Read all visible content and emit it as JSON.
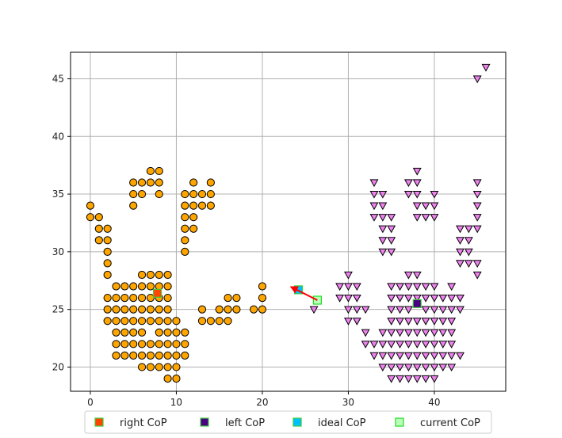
{
  "chart_data": {
    "type": "scatter",
    "title": "",
    "xlabel": "",
    "ylabel": "",
    "xlim": [
      -2.3,
      48.3
    ],
    "ylim": [
      17.9,
      47.3
    ],
    "x_ticks": [
      0,
      10,
      20,
      30,
      40
    ],
    "y_ticks": [
      20,
      25,
      30,
      35,
      40,
      45
    ],
    "grid": true,
    "legend_position": "bottom-outside",
    "colors": {
      "right_points": "#ffa500",
      "left_points": "#ee82ee",
      "right_cop": "#ff4500",
      "left_cop": "#4b0082",
      "ideal_cop": "#00bfff",
      "current_cop": "#7fff7f",
      "arrow": "#ff0000",
      "grid": "#b0b0b0"
    },
    "series": [
      {
        "marker": "circle",
        "points": [
          [
            0,
            34
          ],
          [
            0,
            33
          ],
          [
            1,
            33
          ],
          [
            1,
            32
          ],
          [
            1,
            31
          ],
          [
            2,
            32
          ],
          [
            2,
            31
          ],
          [
            2,
            30
          ],
          [
            2,
            29
          ],
          [
            2,
            28
          ],
          [
            2,
            26
          ],
          [
            2,
            25
          ],
          [
            2,
            24
          ],
          [
            3,
            27
          ],
          [
            3,
            26
          ],
          [
            3,
            25
          ],
          [
            3,
            24
          ],
          [
            3,
            23
          ],
          [
            3,
            22
          ],
          [
            3,
            21
          ],
          [
            4,
            27
          ],
          [
            4,
            26
          ],
          [
            4,
            25
          ],
          [
            4,
            24
          ],
          [
            4,
            23
          ],
          [
            4,
            22
          ],
          [
            4,
            21
          ],
          [
            5,
            34
          ],
          [
            5,
            35
          ],
          [
            5,
            36
          ],
          [
            5,
            27
          ],
          [
            5,
            26
          ],
          [
            5,
            25
          ],
          [
            5,
            24
          ],
          [
            5,
            23
          ],
          [
            5,
            22
          ],
          [
            5,
            21
          ],
          [
            6,
            36
          ],
          [
            6,
            35
          ],
          [
            6,
            28
          ],
          [
            6,
            27
          ],
          [
            6,
            26
          ],
          [
            6,
            25
          ],
          [
            6,
            24
          ],
          [
            6,
            23
          ],
          [
            6,
            22
          ],
          [
            6,
            21
          ],
          [
            6,
            20
          ],
          [
            7,
            37
          ],
          [
            7,
            36
          ],
          [
            7,
            28
          ],
          [
            7,
            27
          ],
          [
            7,
            26
          ],
          [
            7,
            25
          ],
          [
            7,
            24
          ],
          [
            7,
            22
          ],
          [
            7,
            21
          ],
          [
            7,
            20
          ],
          [
            8,
            37
          ],
          [
            8,
            36
          ],
          [
            8,
            35
          ],
          [
            8,
            28
          ],
          [
            8,
            27
          ],
          [
            8,
            26
          ],
          [
            8,
            25
          ],
          [
            8,
            24
          ],
          [
            8,
            23
          ],
          [
            8,
            22
          ],
          [
            8,
            21
          ],
          [
            8,
            20
          ],
          [
            9,
            28
          ],
          [
            9,
            27
          ],
          [
            9,
            26
          ],
          [
            9,
            25
          ],
          [
            9,
            24
          ],
          [
            9,
            23
          ],
          [
            9,
            22
          ],
          [
            9,
            21
          ],
          [
            9,
            20
          ],
          [
            9,
            19
          ],
          [
            10,
            24
          ],
          [
            10,
            23
          ],
          [
            10,
            22
          ],
          [
            10,
            21
          ],
          [
            10,
            20
          ],
          [
            10,
            19
          ],
          [
            11,
            35
          ],
          [
            11,
            34
          ],
          [
            11,
            33
          ],
          [
            11,
            32
          ],
          [
            11,
            31
          ],
          [
            11,
            30
          ],
          [
            11,
            23
          ],
          [
            11,
            22
          ],
          [
            11,
            21
          ],
          [
            12,
            36
          ],
          [
            12,
            35
          ],
          [
            12,
            34
          ],
          [
            12,
            33
          ],
          [
            12,
            32
          ],
          [
            13,
            35
          ],
          [
            13,
            34
          ],
          [
            13,
            25
          ],
          [
            13,
            24
          ],
          [
            14,
            36
          ],
          [
            14,
            35
          ],
          [
            14,
            34
          ],
          [
            14,
            24
          ],
          [
            15,
            25
          ],
          [
            15,
            24
          ],
          [
            16,
            26
          ],
          [
            16,
            25
          ],
          [
            16,
            24
          ],
          [
            17,
            26
          ],
          [
            17,
            25
          ],
          [
            19,
            25
          ],
          [
            20,
            27
          ],
          [
            20,
            26
          ],
          [
            20,
            25
          ]
        ]
      },
      {
        "marker": "triangle-down",
        "points": [
          [
            26,
            25
          ],
          [
            29,
            27
          ],
          [
            29,
            26
          ],
          [
            30,
            28
          ],
          [
            30,
            27
          ],
          [
            30,
            26
          ],
          [
            30,
            25
          ],
          [
            30,
            24
          ],
          [
            31,
            27
          ],
          [
            31,
            26
          ],
          [
            31,
            25
          ],
          [
            31,
            24
          ],
          [
            32,
            25
          ],
          [
            32,
            23
          ],
          [
            32,
            22
          ],
          [
            33,
            36
          ],
          [
            33,
            35
          ],
          [
            33,
            34
          ],
          [
            33,
            33
          ],
          [
            33,
            22
          ],
          [
            33,
            21
          ],
          [
            34,
            35
          ],
          [
            34,
            34
          ],
          [
            34,
            33
          ],
          [
            34,
            32
          ],
          [
            34,
            31
          ],
          [
            34,
            30
          ],
          [
            34,
            23
          ],
          [
            34,
            22
          ],
          [
            34,
            21
          ],
          [
            34,
            20
          ],
          [
            35,
            33
          ],
          [
            35,
            32
          ],
          [
            35,
            31
          ],
          [
            35,
            30
          ],
          [
            35,
            27
          ],
          [
            35,
            26
          ],
          [
            35,
            25
          ],
          [
            35,
            24
          ],
          [
            35,
            23
          ],
          [
            35,
            22
          ],
          [
            35,
            21
          ],
          [
            35,
            20
          ],
          [
            35,
            19
          ],
          [
            36,
            27
          ],
          [
            36,
            26
          ],
          [
            36,
            25
          ],
          [
            36,
            24
          ],
          [
            36,
            23
          ],
          [
            36,
            22
          ],
          [
            36,
            21
          ],
          [
            36,
            20
          ],
          [
            36,
            19
          ],
          [
            37,
            36
          ],
          [
            37,
            35
          ],
          [
            37,
            28
          ],
          [
            37,
            27
          ],
          [
            37,
            26
          ],
          [
            37,
            25
          ],
          [
            37,
            24
          ],
          [
            37,
            23
          ],
          [
            37,
            22
          ],
          [
            37,
            21
          ],
          [
            37,
            20
          ],
          [
            37,
            19
          ],
          [
            38,
            37
          ],
          [
            38,
            36
          ],
          [
            38,
            35
          ],
          [
            38,
            34
          ],
          [
            38,
            33
          ],
          [
            38,
            28
          ],
          [
            38,
            27
          ],
          [
            38,
            26
          ],
          [
            38,
            24
          ],
          [
            38,
            23
          ],
          [
            38,
            22
          ],
          [
            38,
            21
          ],
          [
            38,
            20
          ],
          [
            38,
            19
          ],
          [
            39,
            34
          ],
          [
            39,
            33
          ],
          [
            39,
            27
          ],
          [
            39,
            26
          ],
          [
            39,
            25
          ],
          [
            39,
            24
          ],
          [
            39,
            23
          ],
          [
            39,
            22
          ],
          [
            39,
            21
          ],
          [
            39,
            20
          ],
          [
            39,
            19
          ],
          [
            40,
            35
          ],
          [
            40,
            34
          ],
          [
            40,
            33
          ],
          [
            40,
            27
          ],
          [
            40,
            26
          ],
          [
            40,
            25
          ],
          [
            40,
            24
          ],
          [
            40,
            23
          ],
          [
            40,
            22
          ],
          [
            40,
            21
          ],
          [
            40,
            20
          ],
          [
            40,
            19
          ],
          [
            41,
            26
          ],
          [
            41,
            25
          ],
          [
            41,
            24
          ],
          [
            41,
            23
          ],
          [
            41,
            22
          ],
          [
            41,
            21
          ],
          [
            41,
            20
          ],
          [
            42,
            27
          ],
          [
            42,
            26
          ],
          [
            42,
            25
          ],
          [
            42,
            24
          ],
          [
            42,
            23
          ],
          [
            42,
            22
          ],
          [
            42,
            21
          ],
          [
            42,
            20
          ],
          [
            43,
            32
          ],
          [
            43,
            31
          ],
          [
            43,
            30
          ],
          [
            43,
            29
          ],
          [
            43,
            26
          ],
          [
            43,
            25
          ],
          [
            43,
            21
          ],
          [
            44,
            32
          ],
          [
            44,
            31
          ],
          [
            44,
            30
          ],
          [
            44,
            29
          ],
          [
            45,
            36
          ],
          [
            45,
            35
          ],
          [
            45,
            34
          ],
          [
            45,
            33
          ],
          [
            45,
            32
          ],
          [
            45,
            29
          ],
          [
            45,
            28
          ],
          [
            45,
            45
          ],
          [
            46,
            46
          ]
        ]
      }
    ],
    "cop_markers": [
      {
        "key": "right",
        "x": 7.8,
        "y": 26.4
      },
      {
        "key": "left",
        "x": 38.0,
        "y": 25.5
      },
      {
        "key": "ideal",
        "x": 24.2,
        "y": 26.7
      },
      {
        "key": "current",
        "x": 26.4,
        "y": 25.8
      }
    ],
    "arrow": {
      "from": [
        26.4,
        25.8
      ],
      "to": [
        23.2,
        27.0
      ]
    }
  },
  "legend": {
    "items": [
      {
        "key": "right",
        "label": "right CoP",
        "color": "#ff4500"
      },
      {
        "key": "left",
        "label": "left CoP",
        "color": "#4b0082"
      },
      {
        "key": "ideal",
        "label": "ideal CoP",
        "color": "#00bfff"
      },
      {
        "key": "current",
        "label": "current CoP",
        "color": "#7fff7f"
      }
    ]
  }
}
